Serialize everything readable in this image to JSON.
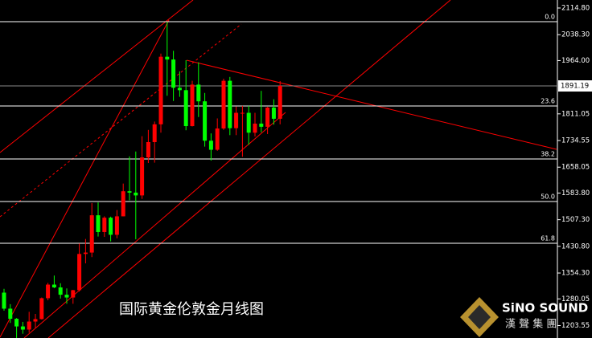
{
  "chart_data": {
    "type": "candlestick",
    "title": "国际黄金伦敦金月线图",
    "brand": "SiNO SOUND",
    "brand_sub": "漢 聲 集 團",
    "up_color": "#ff0000",
    "down_color": "#00ff00",
    "open": [
      1298,
      1252,
      1223,
      1201,
      1192,
      1215,
      1222,
      1282,
      1321,
      1313,
      1292,
      1284,
      1305,
      1409,
      1413,
      1520,
      1472,
      1513,
      1464,
      1517,
      1589,
      1585,
      1577,
      1686,
      1730,
      1781,
      1975,
      1967,
      1886,
      1879,
      1776,
      1895,
      1847,
      1734,
      1708,
      1769,
      1906,
      1770,
      1814,
      1814,
      1757,
      1783,
      1774,
      1829,
      1797
    ],
    "high": [
      1309,
      1265,
      1225,
      1214,
      1243,
      1237,
      1284,
      1326,
      1347,
      1325,
      1310,
      1306,
      1439,
      1452,
      1555,
      1557,
      1517,
      1516,
      1535,
      1611,
      1689,
      1703,
      1747,
      1765,
      1789,
      1984,
      2075,
      1992,
      1933,
      1965,
      1906,
      1959,
      1871,
      1755,
      1798,
      1912,
      1917,
      1832,
      1834,
      1834,
      1814,
      1877,
      1831,
      1853,
      1905
    ],
    "low": [
      1246,
      1211,
      1160,
      1180,
      1183,
      1196,
      1221,
      1276,
      1311,
      1281,
      1266,
      1266,
      1301,
      1382,
      1400,
      1459,
      1458,
      1445,
      1454,
      1517,
      1563,
      1451,
      1567,
      1670,
      1671,
      1757,
      1863,
      1848,
      1860,
      1764,
      1775,
      1802,
      1717,
      1677,
      1705,
      1765,
      1750,
      1750,
      1688,
      1722,
      1746,
      1758,
      1753,
      1780,
      1781
    ],
    "close": [
      1252,
      1223,
      1201,
      1192,
      1215,
      1222,
      1282,
      1321,
      1313,
      1292,
      1284,
      1305,
      1409,
      1413,
      1520,
      1472,
      1513,
      1464,
      1517,
      1589,
      1585,
      1577,
      1686,
      1730,
      1781,
      1975,
      1967,
      1886,
      1879,
      1776,
      1895,
      1847,
      1734,
      1708,
      1769,
      1906,
      1770,
      1814,
      1814,
      1757,
      1783,
      1774,
      1829,
      1797,
      1891.19
    ],
    "ylim": [
      1167.8,
      2137.8
    ],
    "yticks": [
      {
        "value": 2114.8,
        "label": "2114.80"
      },
      {
        "value": 2038.3,
        "label": "2038.30"
      },
      {
        "value": 1964,
        "label": "1964.00"
      },
      {
        "value": 1811.05,
        "label": "1811.05"
      },
      {
        "value": 1734.55,
        "label": "1734.55"
      },
      {
        "value": 1658.05,
        "label": "1658.05"
      },
      {
        "value": 1583.8,
        "label": "1583.80"
      },
      {
        "value": 1507.3,
        "label": "1507.30"
      },
      {
        "value": 1430.8,
        "label": "1430.80"
      },
      {
        "value": 1354.3,
        "label": "1354.30"
      },
      {
        "value": 1280.05,
        "label": "1280.05"
      },
      {
        "value": 1203.55,
        "label": "1203.55"
      }
    ],
    "last_price": 1891.19,
    "fib_levels": [
      {
        "price": 2075.6,
        "label": "0.0"
      },
      {
        "price": 1833.7,
        "label": "23.6"
      },
      {
        "price": 1681.6,
        "label": "38.2"
      },
      {
        "price": 1559.5,
        "label": "50.0"
      },
      {
        "price": 1439.7,
        "label": "61.8"
      }
    ]
  }
}
